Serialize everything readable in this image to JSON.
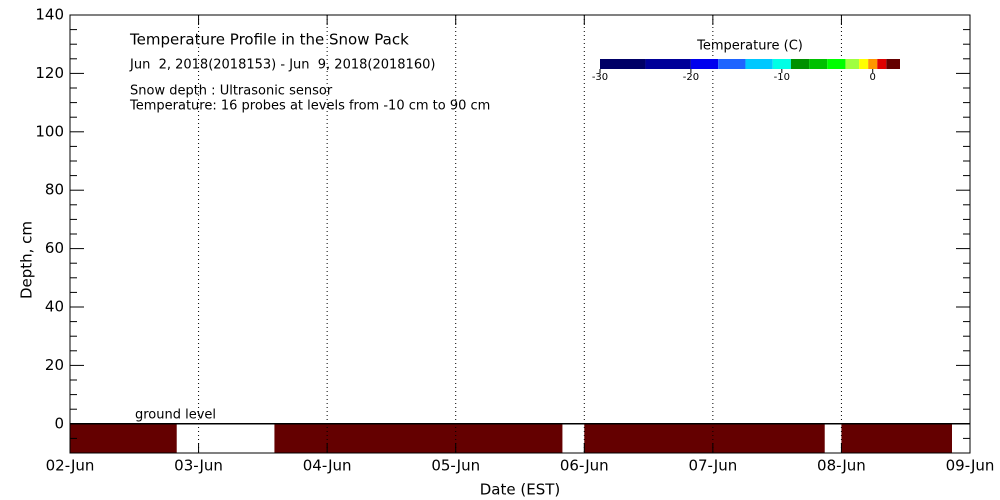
{
  "chart_data": {
    "type": "heatmap",
    "title": "Temperature Profile in the Snow Pack",
    "subtitle": "Jun  2, 2018(2018153) - Jun  9, 2018(2018160)",
    "notes": [
      "Snow depth : Ultrasonic sensor",
      "Temperature: 16 probes at levels from -10 cm to 90 cm"
    ],
    "x_label": "Date (EST)",
    "y_label": "Depth, cm",
    "annotation": "ground level",
    "colorbar_title": "Temperature (C)",
    "xlim": [
      0,
      7
    ],
    "xticks": [
      {
        "value": 0,
        "label": "02-Jun"
      },
      {
        "value": 1,
        "label": "03-Jun"
      },
      {
        "value": 2,
        "label": "04-Jun"
      },
      {
        "value": 3,
        "label": "05-Jun"
      },
      {
        "value": 4,
        "label": "06-Jun"
      },
      {
        "value": 5,
        "label": "07-Jun"
      },
      {
        "value": 6,
        "label": "08-Jun"
      },
      {
        "value": 7,
        "label": "09-Jun"
      }
    ],
    "ylim": [
      -10,
      140
    ],
    "yticks": [
      0,
      20,
      40,
      60,
      80,
      100,
      120,
      140
    ],
    "yticks_minor": [
      -10,
      -5,
      5,
      10,
      15,
      25,
      30,
      35,
      45,
      50,
      55,
      65,
      70,
      75,
      85,
      90,
      95,
      105,
      110,
      115,
      125,
      130,
      135
    ],
    "xgrid": true,
    "clim": [
      -30,
      3
    ],
    "cticks": [
      -30,
      -20,
      -10,
      0
    ],
    "color_bounds": [
      -30,
      -25,
      -20,
      -17,
      -14,
      -11,
      -9,
      -7,
      -5,
      -3,
      -1.5,
      -0.5,
      0.5,
      1.5,
      3
    ],
    "color_levels": [
      "#000066",
      "#000099",
      "#0000ee",
      "#1e64ff",
      "#00c8ff",
      "#00ffe6",
      "#009000",
      "#00c000",
      "#00ff00",
      "#a0ff40",
      "#ffff00",
      "#ff9600",
      "#e00000",
      "#640000"
    ],
    "segments": [
      {
        "start": 0,
        "end": 0.83,
        "top": 0,
        "bottom": -10,
        "temperature": 2
      },
      {
        "start": 1.59,
        "end": 3.83,
        "top": 0,
        "bottom": -10,
        "temperature": 2
      },
      {
        "start": 4.0,
        "end": 5.87,
        "top": 0,
        "bottom": -10,
        "temperature": 2
      },
      {
        "start": 6.0,
        "end": 6.86,
        "top": 0,
        "bottom": -10,
        "temperature": 2
      }
    ]
  }
}
